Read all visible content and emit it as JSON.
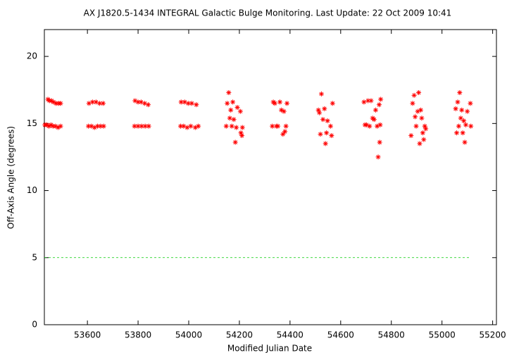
{
  "chart_data": {
    "type": "scatter",
    "title": "AX J1820.5-1434   INTEGRAL Galactic Bulge Monitoring.  Last Update: 22 Oct 2009 10:41",
    "x_label": "Modified Julian Date",
    "y_label": "Off-Axis Angle (degrees)",
    "xlim": [
      53430,
      55215
    ],
    "ylim": [
      0,
      22
    ],
    "xticks": [
      53600,
      53800,
      54000,
      54200,
      54400,
      54600,
      54800,
      55000,
      55200
    ],
    "yticks": [
      0,
      5,
      10,
      15,
      20
    ],
    "grid": false,
    "marker": "asterisk",
    "reference_line": {
      "y": 5,
      "x": [
        53430,
        55113
      ],
      "color": "#00cc00",
      "dashed": true
    },
    "series": [
      {
        "color": "#ff0000",
        "x": [
          53432,
          53440,
          53448,
          53456,
          53464,
          53474,
          53484,
          53494,
          53444,
          53450,
          53458,
          53466,
          53476,
          53486,
          53494,
          53604,
          53616,
          53628,
          53640,
          53652,
          53664,
          53606,
          53620,
          53634,
          53648,
          53662,
          53786,
          53800,
          53814,
          53828,
          53842,
          53788,
          53800,
          53812,
          53826,
          53840,
          53968,
          53980,
          53994,
          54008,
          54026,
          54038,
          53970,
          53984,
          53998,
          54012,
          54030,
          54148,
          54152,
          54158,
          54162,
          54166,
          54170,
          54174,
          54178,
          54184,
          54188,
          54192,
          54204,
          54206,
          54210,
          54212,
          54330,
          54334,
          54340,
          54346,
          54352,
          54360,
          54366,
          54372,
          54376,
          54380,
          54384,
          54388,
          54512,
          54516,
          54520,
          54524,
          54530,
          54536,
          54540,
          54544,
          54548,
          54560,
          54564,
          54568,
          54692,
          54696,
          54702,
          54708,
          54714,
          54720,
          54726,
          54732,
          54738,
          54744,
          54748,
          54752,
          54754,
          54756,
          54758,
          54878,
          54884,
          54890,
          54894,
          54898,
          54904,
          54908,
          54912,
          54916,
          54920,
          54924,
          54928,
          54932,
          54936,
          55054,
          55058,
          55062,
          55066,
          55070,
          55074,
          55078,
          55082,
          55086,
          55090,
          55094,
          55100,
          55112,
          55114
        ],
        "values": [
          14.9,
          14.9,
          14.8,
          14.9,
          14.8,
          14.8,
          14.7,
          14.8,
          16.8,
          16.7,
          16.7,
          16.6,
          16.5,
          16.5,
          16.5,
          14.8,
          14.8,
          14.7,
          14.8,
          14.8,
          14.8,
          16.5,
          16.6,
          16.6,
          16.5,
          16.5,
          14.8,
          14.8,
          14.8,
          14.8,
          14.8,
          16.7,
          16.6,
          16.6,
          16.5,
          16.4,
          14.8,
          14.8,
          14.7,
          14.8,
          14.7,
          14.8,
          16.6,
          16.6,
          16.5,
          16.5,
          16.4,
          14.8,
          16.5,
          17.3,
          15.4,
          16.0,
          14.8,
          16.6,
          15.3,
          13.6,
          14.7,
          16.2,
          15.9,
          14.3,
          14.1,
          14.7,
          14.8,
          16.6,
          16.5,
          14.8,
          14.8,
          16.6,
          16.0,
          14.2,
          15.9,
          14.4,
          14.8,
          16.5,
          16.0,
          15.8,
          14.2,
          17.2,
          15.3,
          16.1,
          13.5,
          14.3,
          15.2,
          14.8,
          14.1,
          16.5,
          16.6,
          14.9,
          14.9,
          16.7,
          14.8,
          16.7,
          15.4,
          15.3,
          16.0,
          14.8,
          12.5,
          16.4,
          13.6,
          14.9,
          16.8,
          14.1,
          16.5,
          17.1,
          15.5,
          14.8,
          15.9,
          17.3,
          13.5,
          16.0,
          15.4,
          14.3,
          13.8,
          14.8,
          14.6,
          16.1,
          14.3,
          16.6,
          14.8,
          17.3,
          15.4,
          16.0,
          14.3,
          15.2,
          13.6,
          14.9,
          15.9,
          16.5,
          14.8
        ]
      }
    ]
  }
}
